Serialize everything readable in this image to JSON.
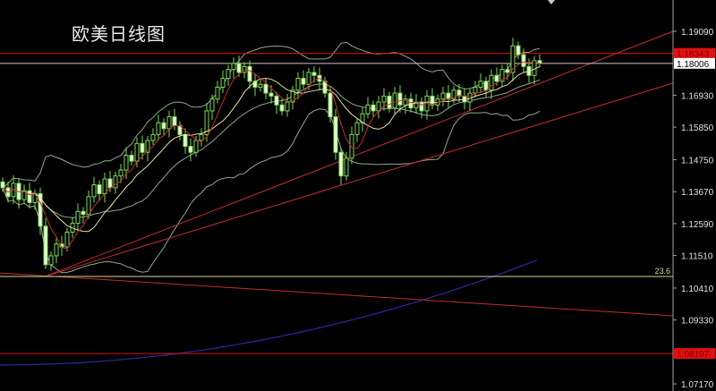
{
  "chart_data": {
    "type": "candlestick",
    "title": "欧美日线图",
    "colors": {
      "background": "#000000",
      "candle": "#7ed957",
      "ma_short": "#c0302a",
      "ma_mid": "#e6e0a0",
      "bollinger": "#8fa88f",
      "trendline": "#c0302a",
      "long_ma": "#2a2aa0",
      "fib": "#d8d890",
      "axis": "#a0a0a0"
    },
    "close": [
      1.138,
      1.135,
      1.1395,
      1.134,
      1.137,
      1.133,
      1.136,
      1.125,
      1.112,
      1.115,
      1.119,
      1.118,
      1.123,
      1.126,
      1.13,
      1.129,
      1.135,
      1.139,
      1.136,
      1.141,
      1.138,
      1.142,
      1.144,
      1.149,
      1.147,
      1.153,
      1.15,
      1.154,
      1.156,
      1.16,
      1.158,
      1.162,
      1.159,
      1.156,
      1.152,
      1.15,
      1.154,
      1.156,
      1.164,
      1.168,
      1.172,
      1.175,
      1.178,
      1.18,
      1.177,
      1.179,
      1.174,
      1.172,
      1.173,
      1.17,
      1.169,
      1.166,
      1.164,
      1.167,
      1.171,
      1.175,
      1.173,
      1.177,
      1.176,
      1.174,
      1.17,
      1.162,
      1.15,
      1.142,
      1.148,
      1.156,
      1.16,
      1.163,
      1.166,
      1.164,
      1.167,
      1.169,
      1.165,
      1.17,
      1.166,
      1.168,
      1.165,
      1.167,
      1.164,
      1.169,
      1.166,
      1.168,
      1.17,
      1.168,
      1.171,
      1.169,
      1.167,
      1.17,
      1.172,
      1.174,
      1.171,
      1.176,
      1.174,
      1.178,
      1.177,
      1.186,
      1.183,
      1.179,
      1.176,
      1.181,
      1.1801
    ],
    "yaxis_ticks": [
      "1.19090",
      "1.16930",
      "1.15850",
      "1.14750",
      "1.13670",
      "1.12590",
      "1.11510",
      "1.10410",
      "1.09330",
      "1.07170"
    ],
    "ylim": [
      1.068,
      1.199
    ],
    "horizontal_lines": [
      {
        "label": "1.18343",
        "price": 1.18343,
        "color": "#e01010"
      },
      {
        "label": "1.18006",
        "price": 1.18006,
        "color": "#c8c8c8"
      },
      {
        "label": "1.08197",
        "price": 1.08197,
        "color": "#e01010"
      }
    ],
    "fib_level": {
      "label": "23.6",
      "price": 1.108
    },
    "trendlines": [
      {
        "from": 1.108,
        "to": 1.1909
      },
      {
        "from": 1.108,
        "to": 1.1734
      },
      {
        "from": 1.1092,
        "to": 1.0947
      }
    ],
    "long_ma": {
      "from": 1.0781,
      "to": 1.1144
    }
  }
}
